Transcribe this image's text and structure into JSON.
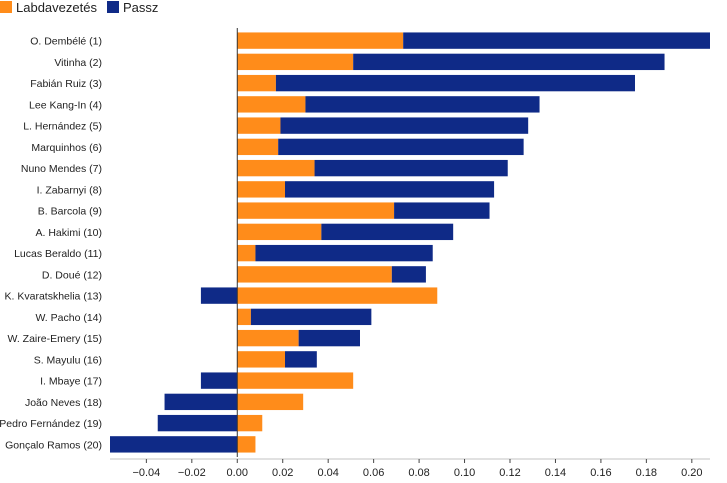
{
  "chart_data": {
    "type": "bar",
    "stacked": true,
    "orientation": "horizontal",
    "categories": [
      "O. Dembélé (1)",
      "Vitinha (2)",
      "Fabián Ruiz (3)",
      "Lee Kang-In (4)",
      "L. Hernández (5)",
      "Marquinhos (6)",
      "Nuno Mendes (7)",
      "I. Zabarnyi (8)",
      "B. Barcola (9)",
      "A. Hakimi (10)",
      "Lucas Beraldo (11)",
      "D. Doué (12)",
      "K. Kvaratskhelia (13)",
      "W. Pacho (14)",
      "W. Zaire-Emery (15)",
      "S. Mayulu (16)",
      "I. Mbaye (17)",
      "João Neves (18)",
      "Pedro Fernández (19)",
      "Gonçalo Ramos (20)"
    ],
    "series": [
      {
        "name": "Labdavezetés",
        "color": "#ff8c1a",
        "values": [
          0.073,
          0.051,
          0.017,
          0.03,
          0.019,
          0.018,
          0.034,
          0.021,
          0.069,
          0.037,
          0.008,
          0.068,
          0.088,
          0.006,
          0.027,
          0.021,
          0.051,
          0.029,
          0.011,
          0.008
        ]
      },
      {
        "name": "Passz",
        "color": "#0f2a87",
        "values": [
          0.135,
          0.137,
          0.158,
          0.103,
          0.109,
          0.108,
          0.085,
          0.092,
          0.042,
          0.058,
          0.078,
          0.015,
          -0.016,
          0.053,
          0.027,
          0.014,
          -0.016,
          -0.032,
          -0.035,
          -0.056
        ]
      }
    ],
    "xlim": [
      -0.056,
      0.208
    ],
    "xticks": [
      -0.04,
      -0.02,
      0.0,
      0.02,
      0.04,
      0.06,
      0.08,
      0.1,
      0.12,
      0.14,
      0.16,
      0.18,
      0.2
    ],
    "xtick_labels": [
      "−0.04",
      "−0.02",
      "0.00",
      "0.02",
      "0.04",
      "0.06",
      "0.08",
      "0.10",
      "0.12",
      "0.14",
      "0.16",
      "0.18",
      "0.20"
    ],
    "xlabel": "",
    "ylabel": "",
    "legend_position": "top-left",
    "grid": false
  }
}
